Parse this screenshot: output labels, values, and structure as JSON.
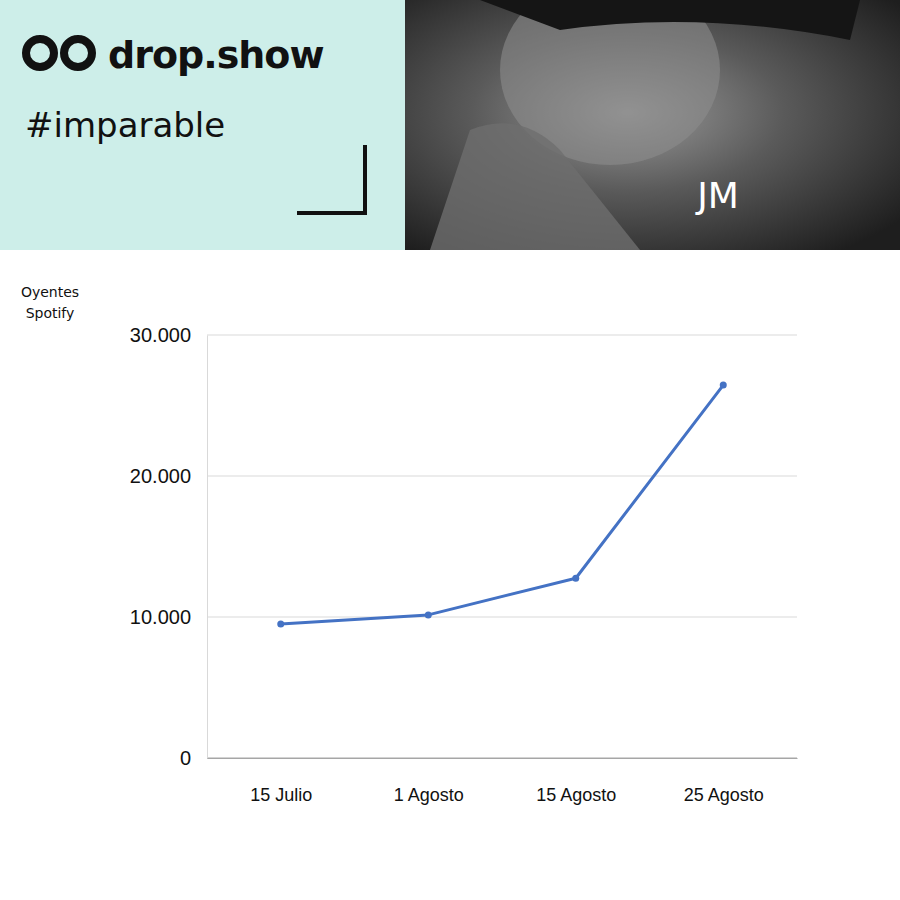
{
  "header": {
    "logo": "drop.show",
    "tag": "#imparable",
    "name": "JM"
  },
  "chart_data": {
    "type": "line",
    "y_label": "Oyentes Spotify",
    "categories": [
      "15 Julio",
      "1 Agosto",
      "15 Agosto",
      "25 Agosto"
    ],
    "values": [
      9500,
      10150,
      12750,
      26450
    ],
    "color": "#4472c4",
    "marker": "circle",
    "ylim": [
      0,
      30000
    ],
    "yticks": [
      0,
      {
        "value": 10000,
        "label": "10.000"
      },
      {
        "value": 20000,
        "label": "20.000"
      },
      {
        "value": 30000,
        "label": "30.000"
      }
    ],
    "grid": true
  }
}
